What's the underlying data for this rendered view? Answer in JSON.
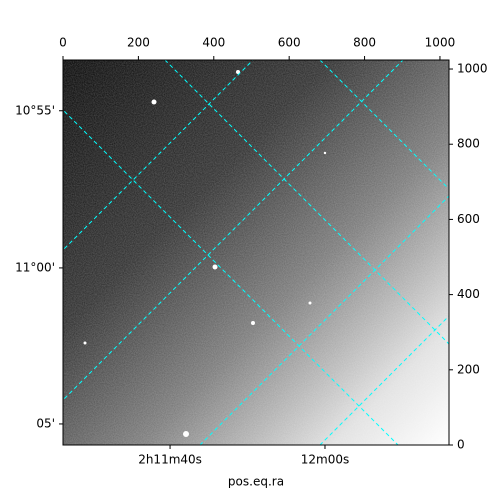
{
  "chart_data": {
    "type": "image",
    "xlabel": "pos.eq.ra",
    "xlim": [
      0,
      1024
    ],
    "ylim": [
      0,
      1024
    ],
    "xticks": [
      0,
      200,
      400,
      600,
      800,
      1000
    ],
    "yticks": [
      0,
      200,
      400,
      600,
      800,
      1000
    ],
    "ra_ticks": [
      {
        "value": 284,
        "label": "2h11m40s"
      },
      {
        "value": 695,
        "label": "12m00s"
      }
    ],
    "dec_ticks": [
      {
        "value": 889,
        "label": "10°55'"
      },
      {
        "value": 471,
        "label": "11°00'"
      },
      {
        "value": 56,
        "label": "05'"
      }
    ],
    "grid_color": "#00ffff"
  }
}
